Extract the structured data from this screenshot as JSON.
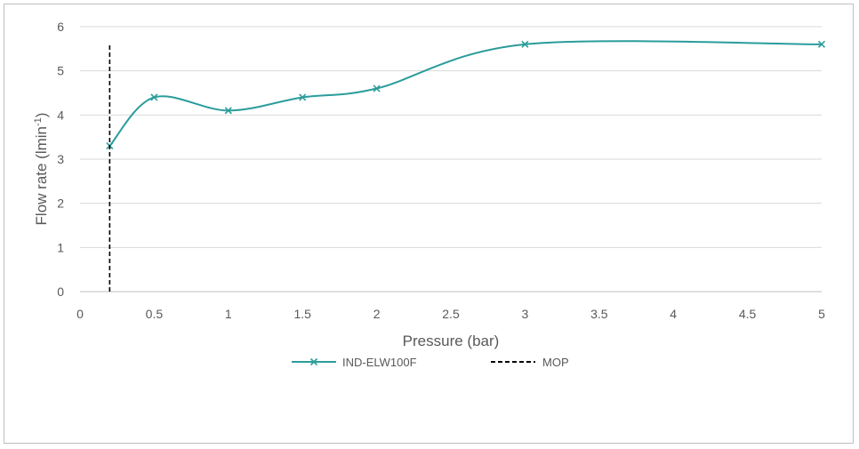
{
  "chart_data": {
    "type": "line",
    "title": "",
    "xlabel": "Pressure (bar)",
    "ylabel_main": "Flow rate (lmin",
    "ylabel_sup": "-1",
    "ylabel_close": ")",
    "xlim": [
      0,
      5
    ],
    "ylim": [
      0,
      6
    ],
    "x_ticks": [
      0,
      0.5,
      1,
      1.5,
      2,
      2.5,
      3,
      3.5,
      4,
      4.5,
      5
    ],
    "y_ticks": [
      0,
      1,
      2,
      3,
      4,
      5,
      6
    ],
    "x_tick_labels": [
      "0",
      "0.5",
      "1",
      "1.5",
      "2",
      "2.5",
      "3",
      "3.5",
      "4",
      "4.5",
      "5"
    ],
    "y_tick_labels": [
      "0",
      "1",
      "2",
      "3",
      "4",
      "5",
      "6"
    ],
    "grid": "horizontal",
    "legend_position": "bottom",
    "series": [
      {
        "name": "IND-ELW100F",
        "color": "#2a9d9b",
        "marker": "x",
        "smooth": true,
        "x": [
          0.2,
          0.5,
          1,
          1.5,
          2,
          3,
          5
        ],
        "y": [
          3.3,
          4.4,
          4.1,
          4.4,
          4.6,
          5.6,
          5.6
        ]
      },
      {
        "name": "MOP",
        "color": "#000000",
        "style": "dashed",
        "x": [
          0.2,
          0.2
        ],
        "y": [
          0,
          5.6
        ]
      }
    ]
  }
}
